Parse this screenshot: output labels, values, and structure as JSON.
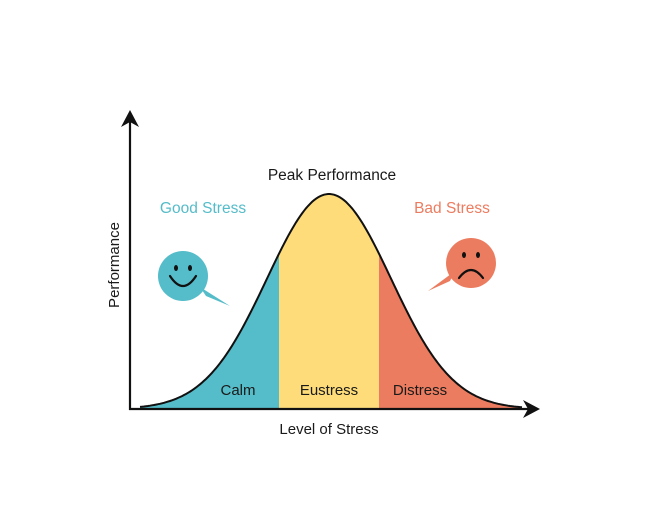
{
  "diagram": {
    "y_axis_label": "Performance",
    "x_axis_label": "Level of Stress",
    "peak_label": "Peak Performance",
    "good_stress_label": "Good Stress",
    "bad_stress_label": "Bad Stress",
    "zones": [
      {
        "label": "Calm",
        "color": "#55BCC9"
      },
      {
        "label": "Eustress",
        "color": "#FDDC79"
      },
      {
        "label": "Distress",
        "color": "#EC7C5F"
      }
    ],
    "colors": {
      "good": "#55BCC9",
      "bad": "#EC7C5F",
      "curve": "#111111"
    },
    "icons": {
      "good": "happy-face-speech-bubble-icon",
      "bad": "sad-face-speech-bubble-icon"
    }
  }
}
